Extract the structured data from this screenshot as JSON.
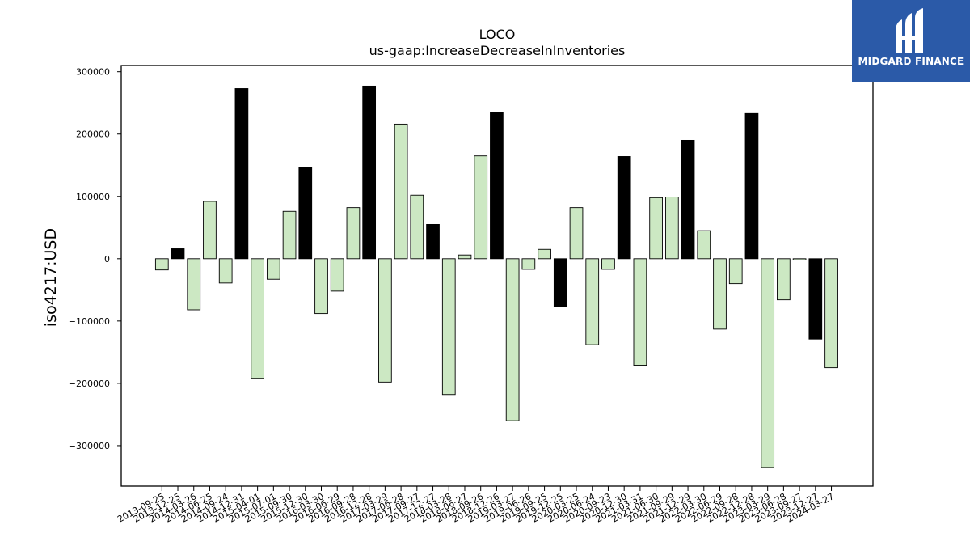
{
  "chart_data": {
    "type": "bar",
    "title": "LOCO",
    "subtitle": "us-gaap:IncreaseDecreaseInInventories",
    "xlabel": "",
    "ylabel": "iso4217:USD",
    "ylim": [
      -365000,
      310000
    ],
    "yticks": [
      -300000,
      -200000,
      -100000,
      0,
      100000,
      200000,
      300000
    ],
    "grid": false,
    "colors": {
      "annual": "#000000",
      "quarterly": "#cce8c3",
      "edge": "#000000"
    },
    "categories": [
      "2013-09-25",
      "2013-12-25",
      "2014-03-26",
      "2014-06-25",
      "2014-09-24",
      "2014-12-31",
      "2015-04-01",
      "2015-07-01",
      "2015-09-30",
      "2015-12-30",
      "2016-03-30",
      "2016-06-29",
      "2016-09-28",
      "2016-12-28",
      "2017-03-29",
      "2017-06-28",
      "2017-09-27",
      "2017-12-27",
      "2018-03-28",
      "2018-06-27",
      "2018-09-26",
      "2018-12-26",
      "2019-03-27",
      "2019-06-26",
      "2019-09-25",
      "2019-12-25",
      "2020-03-25",
      "2020-06-24",
      "2020-09-23",
      "2020-12-30",
      "2021-03-31",
      "2021-06-30",
      "2021-09-29",
      "2021-12-29",
      "2022-03-30",
      "2022-06-29",
      "2022-09-28",
      "2022-12-28",
      "2023-03-29",
      "2023-06-28",
      "2023-09-27",
      "2023-12-27",
      "2024-03-27"
    ],
    "values": [
      -18000,
      16000,
      -82000,
      92000,
      -39000,
      273000,
      -192000,
      -33000,
      76000,
      146000,
      -88000,
      -52000,
      82000,
      277000,
      -198000,
      216000,
      102000,
      55000,
      -218000,
      6000,
      165000,
      235000,
      -260000,
      -17000,
      15000,
      -77000,
      82000,
      -138000,
      -17000,
      164000,
      -171000,
      98000,
      99000,
      190000,
      45000,
      -113000,
      -40000,
      233000,
      -335000,
      -66000,
      -2000,
      -129000,
      -175000
    ],
    "annual": [
      false,
      true,
      false,
      false,
      false,
      true,
      false,
      false,
      false,
      true,
      false,
      false,
      false,
      true,
      false,
      false,
      false,
      true,
      false,
      false,
      false,
      true,
      false,
      false,
      false,
      true,
      false,
      false,
      false,
      true,
      false,
      false,
      false,
      true,
      false,
      false,
      false,
      true,
      false,
      false,
      false,
      true,
      false
    ]
  },
  "logo": {
    "name": "MIDGARD FINANCE",
    "icon": "midgard-logo-icon"
  }
}
